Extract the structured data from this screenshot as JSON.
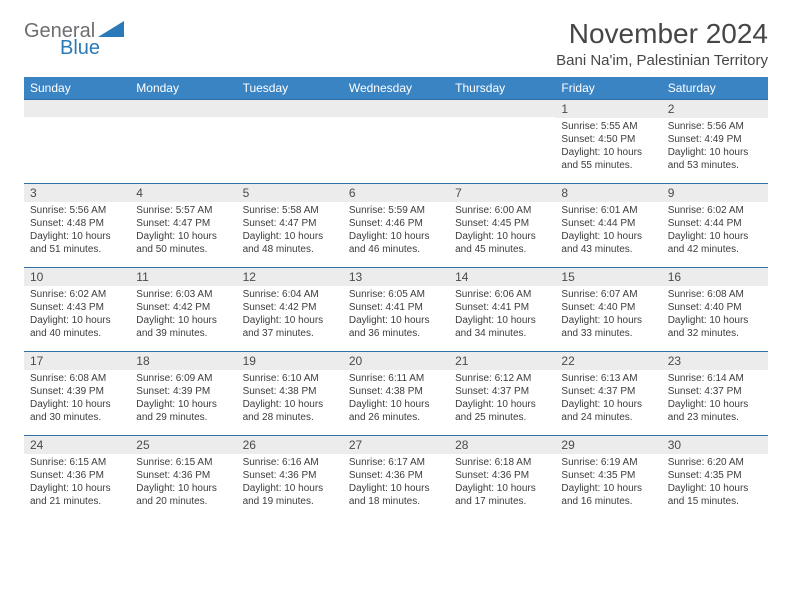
{
  "logo": {
    "word1": "General",
    "word2": "Blue"
  },
  "title": "November 2024",
  "location": "Bani Na'im, Palestinian Territory",
  "colors": {
    "header_bg": "#3b84c4",
    "header_text": "#ffffff",
    "border": "#2f6fa5",
    "daynum_bg": "#ececec",
    "logo_gray": "#6d6e71",
    "logo_blue": "#2a7ab9",
    "text": "#464646"
  },
  "fonts": {
    "title_size": 28,
    "location_size": 15,
    "dayheader_size": 12,
    "daynum_size": 12,
    "body_size": 10
  },
  "dayHeaders": [
    "Sunday",
    "Monday",
    "Tuesday",
    "Wednesday",
    "Thursday",
    "Friday",
    "Saturday"
  ],
  "weeks": [
    [
      {
        "num": "",
        "lines": []
      },
      {
        "num": "",
        "lines": []
      },
      {
        "num": "",
        "lines": []
      },
      {
        "num": "",
        "lines": []
      },
      {
        "num": "",
        "lines": []
      },
      {
        "num": "1",
        "lines": [
          "Sunrise: 5:55 AM",
          "Sunset: 4:50 PM",
          "Daylight: 10 hours and 55 minutes."
        ]
      },
      {
        "num": "2",
        "lines": [
          "Sunrise: 5:56 AM",
          "Sunset: 4:49 PM",
          "Daylight: 10 hours and 53 minutes."
        ]
      }
    ],
    [
      {
        "num": "3",
        "lines": [
          "Sunrise: 5:56 AM",
          "Sunset: 4:48 PM",
          "Daylight: 10 hours and 51 minutes."
        ]
      },
      {
        "num": "4",
        "lines": [
          "Sunrise: 5:57 AM",
          "Sunset: 4:47 PM",
          "Daylight: 10 hours and 50 minutes."
        ]
      },
      {
        "num": "5",
        "lines": [
          "Sunrise: 5:58 AM",
          "Sunset: 4:47 PM",
          "Daylight: 10 hours and 48 minutes."
        ]
      },
      {
        "num": "6",
        "lines": [
          "Sunrise: 5:59 AM",
          "Sunset: 4:46 PM",
          "Daylight: 10 hours and 46 minutes."
        ]
      },
      {
        "num": "7",
        "lines": [
          "Sunrise: 6:00 AM",
          "Sunset: 4:45 PM",
          "Daylight: 10 hours and 45 minutes."
        ]
      },
      {
        "num": "8",
        "lines": [
          "Sunrise: 6:01 AM",
          "Sunset: 4:44 PM",
          "Daylight: 10 hours and 43 minutes."
        ]
      },
      {
        "num": "9",
        "lines": [
          "Sunrise: 6:02 AM",
          "Sunset: 4:44 PM",
          "Daylight: 10 hours and 42 minutes."
        ]
      }
    ],
    [
      {
        "num": "10",
        "lines": [
          "Sunrise: 6:02 AM",
          "Sunset: 4:43 PM",
          "Daylight: 10 hours and 40 minutes."
        ]
      },
      {
        "num": "11",
        "lines": [
          "Sunrise: 6:03 AM",
          "Sunset: 4:42 PM",
          "Daylight: 10 hours and 39 minutes."
        ]
      },
      {
        "num": "12",
        "lines": [
          "Sunrise: 6:04 AM",
          "Sunset: 4:42 PM",
          "Daylight: 10 hours and 37 minutes."
        ]
      },
      {
        "num": "13",
        "lines": [
          "Sunrise: 6:05 AM",
          "Sunset: 4:41 PM",
          "Daylight: 10 hours and 36 minutes."
        ]
      },
      {
        "num": "14",
        "lines": [
          "Sunrise: 6:06 AM",
          "Sunset: 4:41 PM",
          "Daylight: 10 hours and 34 minutes."
        ]
      },
      {
        "num": "15",
        "lines": [
          "Sunrise: 6:07 AM",
          "Sunset: 4:40 PM",
          "Daylight: 10 hours and 33 minutes."
        ]
      },
      {
        "num": "16",
        "lines": [
          "Sunrise: 6:08 AM",
          "Sunset: 4:40 PM",
          "Daylight: 10 hours and 32 minutes."
        ]
      }
    ],
    [
      {
        "num": "17",
        "lines": [
          "Sunrise: 6:08 AM",
          "Sunset: 4:39 PM",
          "Daylight: 10 hours and 30 minutes."
        ]
      },
      {
        "num": "18",
        "lines": [
          "Sunrise: 6:09 AM",
          "Sunset: 4:39 PM",
          "Daylight: 10 hours and 29 minutes."
        ]
      },
      {
        "num": "19",
        "lines": [
          "Sunrise: 6:10 AM",
          "Sunset: 4:38 PM",
          "Daylight: 10 hours and 28 minutes."
        ]
      },
      {
        "num": "20",
        "lines": [
          "Sunrise: 6:11 AM",
          "Sunset: 4:38 PM",
          "Daylight: 10 hours and 26 minutes."
        ]
      },
      {
        "num": "21",
        "lines": [
          "Sunrise: 6:12 AM",
          "Sunset: 4:37 PM",
          "Daylight: 10 hours and 25 minutes."
        ]
      },
      {
        "num": "22",
        "lines": [
          "Sunrise: 6:13 AM",
          "Sunset: 4:37 PM",
          "Daylight: 10 hours and 24 minutes."
        ]
      },
      {
        "num": "23",
        "lines": [
          "Sunrise: 6:14 AM",
          "Sunset: 4:37 PM",
          "Daylight: 10 hours and 23 minutes."
        ]
      }
    ],
    [
      {
        "num": "24",
        "lines": [
          "Sunrise: 6:15 AM",
          "Sunset: 4:36 PM",
          "Daylight: 10 hours and 21 minutes."
        ]
      },
      {
        "num": "25",
        "lines": [
          "Sunrise: 6:15 AM",
          "Sunset: 4:36 PM",
          "Daylight: 10 hours and 20 minutes."
        ]
      },
      {
        "num": "26",
        "lines": [
          "Sunrise: 6:16 AM",
          "Sunset: 4:36 PM",
          "Daylight: 10 hours and 19 minutes."
        ]
      },
      {
        "num": "27",
        "lines": [
          "Sunrise: 6:17 AM",
          "Sunset: 4:36 PM",
          "Daylight: 10 hours and 18 minutes."
        ]
      },
      {
        "num": "28",
        "lines": [
          "Sunrise: 6:18 AM",
          "Sunset: 4:36 PM",
          "Daylight: 10 hours and 17 minutes."
        ]
      },
      {
        "num": "29",
        "lines": [
          "Sunrise: 6:19 AM",
          "Sunset: 4:35 PM",
          "Daylight: 10 hours and 16 minutes."
        ]
      },
      {
        "num": "30",
        "lines": [
          "Sunrise: 6:20 AM",
          "Sunset: 4:35 PM",
          "Daylight: 10 hours and 15 minutes."
        ]
      }
    ]
  ]
}
